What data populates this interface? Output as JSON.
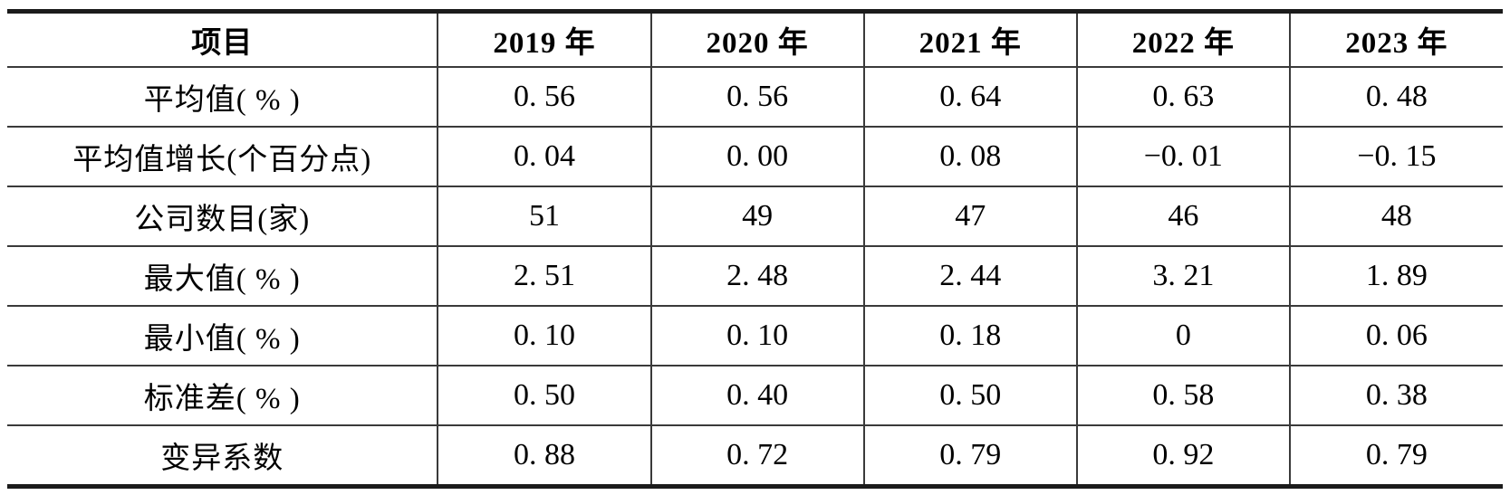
{
  "page": {
    "background_color": "#ffffff",
    "text_color": "#000000",
    "thick_rule_color": "#1b1b1b",
    "grid_line_color": "#3a3a3a"
  },
  "table": {
    "columns": [
      "项目",
      "2019 年",
      "2020 年",
      "2021 年",
      "2022 年",
      "2023 年"
    ],
    "rows": [
      {
        "label": "平均值( % )",
        "values": [
          "0. 56",
          "0. 56",
          "0. 64",
          "0. 63",
          "0. 48"
        ]
      },
      {
        "label": "平均值增长(个百分点)",
        "values": [
          "0. 04",
          "0. 00",
          "0. 08",
          "−0. 01",
          "−0. 15"
        ]
      },
      {
        "label": "公司数目(家)",
        "values": [
          "51",
          "49",
          "47",
          "46",
          "48"
        ]
      },
      {
        "label": "最大值( % )",
        "values": [
          "2. 51",
          "2. 48",
          "2. 44",
          "3. 21",
          "1. 89"
        ]
      },
      {
        "label": "最小值( % )",
        "values": [
          "0. 10",
          "0. 10",
          "0. 18",
          "0",
          "0. 06"
        ]
      },
      {
        "label": "标准差( % )",
        "values": [
          "0. 50",
          "0. 40",
          "0. 50",
          "0. 58",
          "0. 38"
        ]
      },
      {
        "label": "变异系数",
        "values": [
          "0. 88",
          "0. 72",
          "0. 79",
          "0. 92",
          "0. 79"
        ]
      }
    ]
  }
}
